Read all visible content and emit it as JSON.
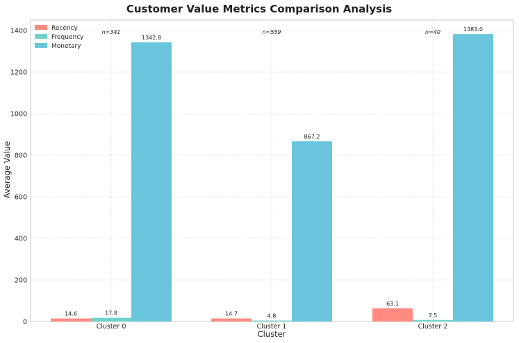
{
  "chart_data": {
    "type": "bar",
    "title": "Customer Value Metrics Comparison Analysis",
    "xlabel": "Cluster",
    "ylabel": "Average Value",
    "categories": [
      "Cluster 0",
      "Cluster 1",
      "Cluster 2"
    ],
    "series": [
      {
        "name": "Recency",
        "values": [
          14.6,
          14.7,
          63.1
        ],
        "labels": [
          "14.6",
          "14.7",
          "63.1"
        ],
        "color": "#ff8a80"
      },
      {
        "name": "Frequency",
        "values": [
          17.8,
          4.8,
          7.5
        ],
        "labels": [
          "17.8",
          "4.8",
          "7.5"
        ],
        "color": "#6fd3cc"
      },
      {
        "name": "Monetary",
        "values": [
          1342.8,
          867.2,
          1383.0
        ],
        "labels": [
          "1342.8",
          "867.2",
          "1383.0"
        ],
        "color": "#68c5db"
      }
    ],
    "cluster_sizes": [
      "n=341",
      "n=559",
      "n=40"
    ],
    "ylim": [
      0,
      1450
    ],
    "yticks": [
      0,
      200,
      400,
      600,
      800,
      1000,
      1200,
      1400
    ],
    "grid": true,
    "legend_position": "top-left"
  }
}
